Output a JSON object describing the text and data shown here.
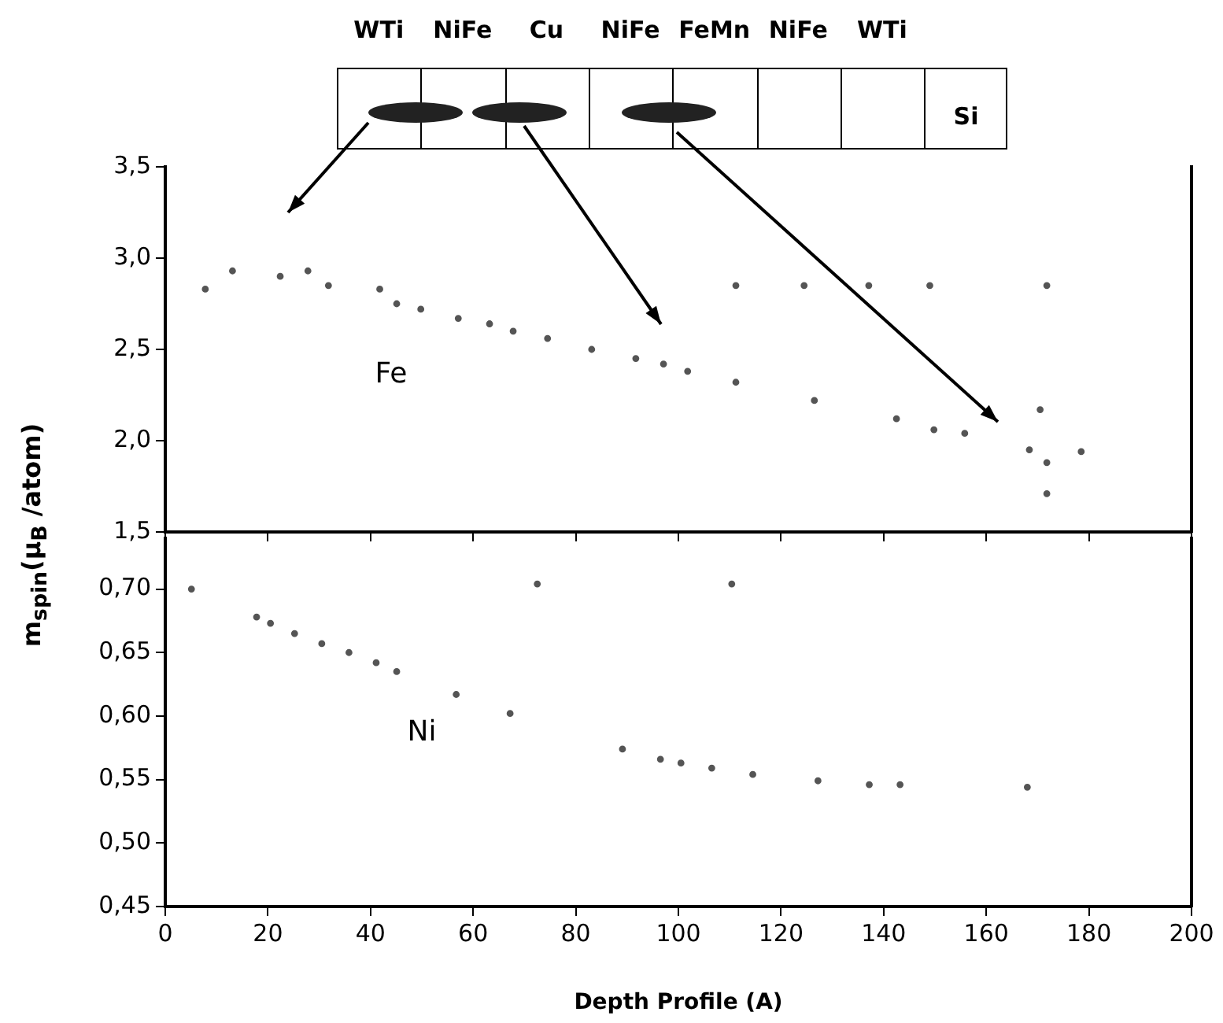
{
  "chart_data": [
    {
      "type": "scatter",
      "annotations": [
        "WTi",
        "NiFe",
        "Cu",
        "NiFe",
        "FeMn",
        "NiFe",
        "WTi",
        "Si"
      ],
      "xlim": [
        0,
        200
      ],
      "xticks": [
        0,
        20,
        40,
        60,
        80,
        100,
        120,
        140,
        160,
        180,
        200
      ],
      "ylim": [
        1.5,
        3.5
      ],
      "yticks": [
        {
          "value": 1.5,
          "label": "1,5"
        },
        {
          "value": 2.0,
          "label": "2,0"
        },
        {
          "value": 2.5,
          "label": "2,5"
        },
        {
          "value": 3.0,
          "label": "3,0"
        },
        {
          "value": 3.5,
          "label": "3,5"
        }
      ],
      "tick_labels": "y",
      "grid": false,
      "legend": false,
      "marker": "circle",
      "series": [
        {
          "name": "Fe",
          "color": "#555555",
          "x": [
            7.8,
            13.1,
            22.4,
            27.8,
            31.8,
            41.8,
            45.1,
            49.8,
            57.1,
            63.2,
            67.8,
            74.5,
            83.1,
            91.7,
            97.1,
            101.8,
            111.2,
            126.5,
            142.5,
            149.8,
            155.8,
            170.5,
            171.8,
            168.4,
            178.5,
            171.8,
            111.2,
            124.5,
            137.1,
            149,
            171.8
          ],
          "values": [
            2.83,
            2.93,
            2.9,
            2.93,
            2.85,
            2.83,
            2.75,
            2.72,
            2.67,
            2.64,
            2.6,
            2.56,
            2.5,
            2.45,
            2.42,
            2.38,
            2.32,
            2.22,
            2.12,
            2.06,
            2.04,
            2.17,
            1.88,
            1.95,
            1.94,
            1.71,
            2.85,
            2.85,
            2.85,
            2.85,
            2.85
          ]
        }
      ]
    },
    {
      "type": "scatter",
      "xlabel": "Depth Profile (A)",
      "ylabel": "m$_{spin}$(μ$_{B}$ /atom)",
      "xlim": [
        0,
        200
      ],
      "xticks": [
        0,
        20,
        40,
        60,
        80,
        100,
        120,
        140,
        160,
        180,
        200
      ],
      "ylim": [
        0.45,
        0.74
      ],
      "yticks": [
        {
          "value": 0.45,
          "label": "0,45"
        },
        {
          "value": 0.5,
          "label": "0,50"
        },
        {
          "value": 0.55,
          "label": "0,55"
        },
        {
          "value": 0.6,
          "label": "0,60"
        },
        {
          "value": 0.65,
          "label": "0,65"
        },
        {
          "value": 0.7,
          "label": "0,70"
        }
      ],
      "grid": false,
      "legend": false,
      "marker": "circle",
      "series": [
        {
          "name": "Ni",
          "color": "#555555",
          "x": [
            5.1,
            72.5,
            110.4,
            17.8,
            20.5,
            25.2,
            30.5,
            35.8,
            41.1,
            45.1,
            56.7,
            67.2,
            89.1,
            96.5,
            100.5,
            106.5,
            114.5,
            127.2,
            137.2,
            143.2,
            168
          ],
          "values": [
            0.7,
            0.704,
            0.704,
            0.678,
            0.673,
            0.665,
            0.657,
            0.65,
            0.642,
            0.635,
            0.617,
            0.602,
            0.574,
            0.566,
            0.563,
            0.559,
            0.554,
            0.549,
            0.546,
            0.546,
            0.544
          ]
        }
      ]
    }
  ]
}
